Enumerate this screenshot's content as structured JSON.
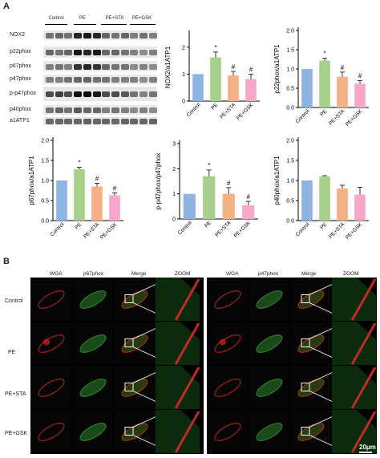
{
  "panel_a": {
    "letter": "A",
    "blot": {
      "groups": [
        "Control",
        "PE",
        "PE+STA",
        "PE+GSK"
      ],
      "proteins": [
        "NOX2",
        "p22phox",
        "p67phox",
        "p47phox",
        "p-p47phox",
        "p40phox",
        "a1ATP1"
      ]
    }
  },
  "chart_data": [
    {
      "type": "bar",
      "title": "",
      "xlabel": "",
      "ylabel": "NOX2/a1ATP1",
      "categories": [
        "Control",
        "PE",
        "PE+STA",
        "PE+GSK"
      ],
      "values": [
        1.0,
        1.62,
        0.95,
        0.82
      ],
      "errors": [
        0.0,
        0.2,
        0.15,
        0.18
      ],
      "annotations": [
        "",
        "*",
        "#",
        "#"
      ],
      "ylim": [
        0,
        2.5
      ],
      "yticks": [
        "0",
        "1",
        "2"
      ],
      "colors": [
        "#8eb4e3",
        "#a8d08d",
        "#f4b183",
        "#f7a8c8"
      ]
    },
    {
      "type": "bar",
      "title": "",
      "xlabel": "",
      "ylabel": "p22phox/a1ATP1",
      "categories": [
        "Control",
        "PE",
        "PE+STA",
        "PE+GSK"
      ],
      "values": [
        1.0,
        1.22,
        0.8,
        0.62
      ],
      "errors": [
        0.0,
        0.06,
        0.12,
        0.08
      ],
      "annotations": [
        "",
        "*",
        "#",
        "#"
      ],
      "ylim": [
        0,
        2
      ],
      "yticks": [
        "0.0",
        "0.5",
        "1.0",
        "1.5",
        "2.0"
      ],
      "colors": [
        "#8eb4e3",
        "#a8d08d",
        "#f4b183",
        "#f7a8c8"
      ]
    },
    {
      "type": "bar",
      "title": "",
      "xlabel": "",
      "ylabel": "p67phox/a1ATP1",
      "categories": [
        "Control",
        "PE",
        "PE+STA",
        "PE+GSK"
      ],
      "values": [
        1.0,
        1.28,
        0.85,
        0.63
      ],
      "errors": [
        0.0,
        0.05,
        0.08,
        0.06
      ],
      "annotations": [
        "",
        "*",
        "#",
        "#"
      ],
      "ylim": [
        0,
        2
      ],
      "yticks": [
        "0.0",
        "0.5",
        "1.0",
        "1.5",
        "2.0"
      ],
      "colors": [
        "#8eb4e3",
        "#a8d08d",
        "#f4b183",
        "#f7a8c8"
      ]
    },
    {
      "type": "bar",
      "title": "",
      "xlabel": "",
      "ylabel": "p-p47phox/p47phox",
      "categories": [
        "Control",
        "PE",
        "PE+STA",
        "PE+GSK"
      ],
      "values": [
        1.0,
        1.7,
        1.0,
        0.55
      ],
      "errors": [
        0.0,
        0.25,
        0.25,
        0.15
      ],
      "annotations": [
        "",
        "*",
        "#",
        "#"
      ],
      "ylim": [
        0,
        3
      ],
      "yticks": [
        "0",
        "1",
        "2",
        "3"
      ],
      "colors": [
        "#8eb4e3",
        "#a8d08d",
        "#f4b183",
        "#f7a8c8"
      ]
    },
    {
      "type": "bar",
      "title": "",
      "xlabel": "",
      "ylabel": "p40phox/a1ATP1",
      "categories": [
        "Control",
        "PE",
        "PE+STA",
        "PE+GSK"
      ],
      "values": [
        1.0,
        1.1,
        0.8,
        0.65
      ],
      "errors": [
        0.0,
        0.02,
        0.08,
        0.18
      ],
      "annotations": [
        "",
        "",
        "",
        ""
      ],
      "ylim": [
        0,
        2
      ],
      "yticks": [
        "0.0",
        "0.5",
        "1.0",
        "1.5",
        "2.0"
      ],
      "colors": [
        "#8eb4e3",
        "#a8d08d",
        "#f4b183",
        "#f7a8c8"
      ]
    }
  ],
  "panel_b": {
    "letter": "B",
    "left_headers": [
      "WGA",
      "p67phox",
      "Merge",
      "ZOOM"
    ],
    "right_headers": [
      "WGA",
      "p47phox",
      "Merge",
      "ZOOM"
    ],
    "rows": [
      "Control",
      "PE",
      "PE+STA",
      "PE+GSK"
    ],
    "scale_bar": "20μm"
  }
}
